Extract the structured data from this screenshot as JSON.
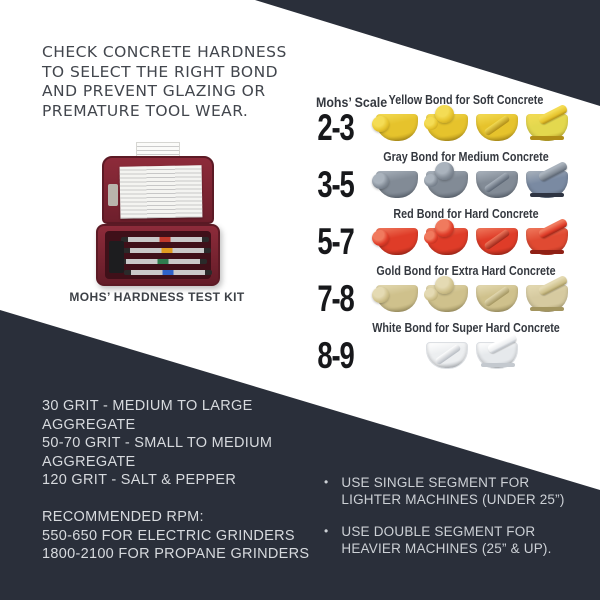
{
  "colors": {
    "dark_band": "#2a2f3a",
    "headline_text": "#42464d",
    "light_text": "#d7dade",
    "number_text": "#17181b",
    "kit_case": "#7a2330"
  },
  "headline": {
    "lines": [
      "CHECK CONCRETE HARDNESS",
      "TO SELECT THE RIGHT BOND",
      "AND PREVENT GLAZING OR",
      "PREMATURE TOOL WEAR."
    ]
  },
  "kit": {
    "caption": "MOHS’ HARDNESS TEST KIT"
  },
  "mohs": {
    "scale_title": "Mohs’ Scale",
    "rows": [
      {
        "range": "2-3",
        "label": "Yellow Bond for Soft Concrete",
        "colors": {
          "base": "#e6c32c",
          "light": "#f4dc55",
          "dark": "#b08d17",
          "alt": "#e3d84e",
          "strip": "#b08d17"
        }
      },
      {
        "range": "3-5",
        "label": "Gray Bond for Medium Concrete",
        "colors": {
          "base": "#828b96",
          "light": "#aab3bd",
          "dark": "#596371",
          "alt": "#7a8aa2",
          "strip": "#2e3442"
        }
      },
      {
        "range": "5-7",
        "label": "Red Bond for Hard Concrete",
        "colors": {
          "base": "#df3c28",
          "light": "#f07a5e",
          "dark": "#9e2517",
          "alt": "#e04a32",
          "strip": "#8f2015"
        }
      },
      {
        "range": "7-8",
        "label": "Gold Bond for Extra Hard Concrete",
        "colors": {
          "base": "#cfc18c",
          "light": "#e4dab3",
          "dark": "#a3955f",
          "alt": "#d6caa0",
          "strip": "#a3955f"
        }
      },
      {
        "range": "8-9",
        "label": "White Bond for Super Hard Concrete",
        "colors": {
          "base": "#eceef0",
          "light": "#ffffff",
          "dark": "#b6bbc2",
          "alt": "#e6e9ec",
          "strip": "#c4c9cf"
        }
      }
    ]
  },
  "specs": {
    "grit_lines": [
      "30 GRIT - MEDIUM TO LARGE",
      "AGGREGATE",
      "50-70 GRIT - SMALL TO MEDIUM",
      "AGGREGATE",
      "120 GRIT - SALT & PEPPER"
    ],
    "rpm_lines": [
      "RECOMMENDED RPM:",
      "550-650 FOR ELECTRIC GRINDERS",
      "1800-2100 FOR PROPANE GRINDERS"
    ]
  },
  "bullets": [
    {
      "dot": "•",
      "lines": [
        "USE SINGLE SEGMENT FOR",
        "LIGHTER MACHINES (UNDER 25”)"
      ]
    },
    {
      "dot": "•",
      "lines": [
        "USE DOUBLE SEGMENT FOR",
        "HEAVIER MACHINES (25” & UP)."
      ]
    }
  ]
}
